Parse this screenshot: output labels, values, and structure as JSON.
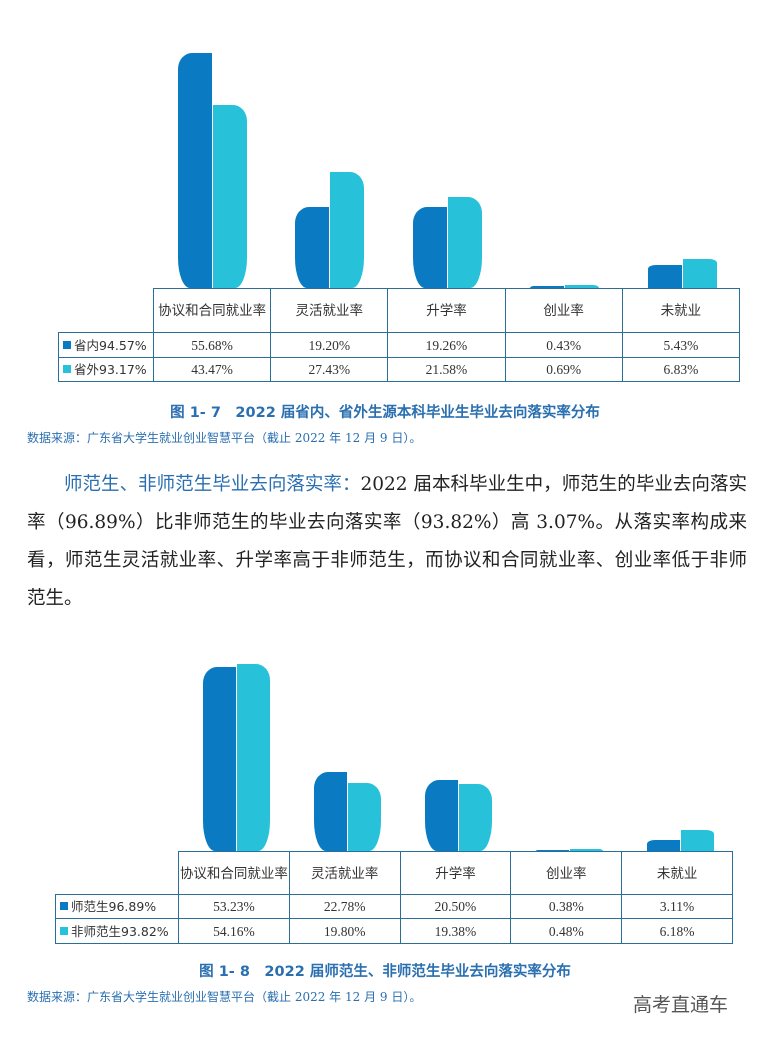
{
  "colors": {
    "series0": "#0a7bc2",
    "series1": "#27c2d9",
    "table_border": "#2a6f97",
    "accent_text": "#2a6fb0"
  },
  "figure1": {
    "caption": "图 1- 7　2022 届省内、省外生源本科毕业生毕业去向落实率分布",
    "source": "数据来源：广东省大学生就业创业智慧平台（截止 2022 年 12 月 9 日）。",
    "categories": [
      "协议和合同就业率",
      "灵活就业率",
      "升学率",
      "创业率",
      "未就业"
    ],
    "series": [
      {
        "name": "省内94.57%",
        "values": [
          "55.68%",
          "19.20%",
          "19.26%",
          "0.43%",
          "5.43%"
        ]
      },
      {
        "name": "省外93.17%",
        "values": [
          "43.47%",
          "27.43%",
          "21.58%",
          "0.69%",
          "6.83%"
        ]
      }
    ]
  },
  "paragraph": {
    "lead": "师范生、非师范生毕业去向落实率：",
    "body": "2022 届本科毕业生中，师范生的毕业去向落实率（96.89%）比非师范生的毕业去向落实率（93.82%）高 3.07%。从落实率构成来看，师范生灵活就业率、升学率高于非师范生，而协议和合同就业率、创业率低于非师范生。"
  },
  "figure2": {
    "caption": "图 1- 8　2022 届师范生、非师范生毕业去向落实率分布",
    "source": "数据来源：广东省大学生就业创业智慧平台（截止 2022 年 12 月 9 日）。",
    "categories": [
      "协议和合同就业率",
      "灵活就业率",
      "升学率",
      "创业率",
      "未就业"
    ],
    "series": [
      {
        "name": "师范生96.89%",
        "values": [
          "53.23%",
          "22.78%",
          "20.50%",
          "0.38%",
          "3.11%"
        ]
      },
      {
        "name": "非师范生93.82%",
        "values": [
          "54.16%",
          "19.80%",
          "19.38%",
          "0.48%",
          "6.18%"
        ]
      }
    ]
  },
  "watermark": "高考直通车",
  "chart_data": [
    {
      "type": "bar",
      "title": "图 1- 7 2022 届省内、省外生源本科毕业生毕业去向落实率分布",
      "categories": [
        "协议和合同就业率",
        "灵活就业率",
        "升学率",
        "创业率",
        "未就业"
      ],
      "series": [
        {
          "name": "省内94.57%",
          "values": [
            55.68,
            19.2,
            19.26,
            0.43,
            5.43
          ]
        },
        {
          "name": "省外93.17%",
          "values": [
            43.47,
            27.43,
            21.58,
            0.69,
            6.83
          ]
        }
      ],
      "xlabel": "",
      "ylabel": "",
      "ylim": [
        0,
        56
      ],
      "grid": false,
      "legend": "data-table-left",
      "note": "数据来源：广东省大学生就业创业智慧平台（截止 2022 年 12 月 9 日）。"
    },
    {
      "type": "bar",
      "title": "图 1- 8 2022 届师范生、非师范生毕业去向落实率分布",
      "categories": [
        "协议和合同就业率",
        "灵活就业率",
        "升学率",
        "创业率",
        "未就业"
      ],
      "series": [
        {
          "name": "师范生96.89%",
          "values": [
            53.23,
            22.78,
            20.5,
            0.38,
            3.11
          ]
        },
        {
          "name": "非师范生93.82%",
          "values": [
            54.16,
            19.8,
            19.38,
            0.48,
            6.18
          ]
        }
      ],
      "xlabel": "",
      "ylabel": "",
      "ylim": [
        0,
        55
      ],
      "grid": false,
      "legend": "data-table-left",
      "note": "数据来源：广东省大学生就业创业智慧平台（截止 2022 年 12 月 9 日）。"
    }
  ]
}
